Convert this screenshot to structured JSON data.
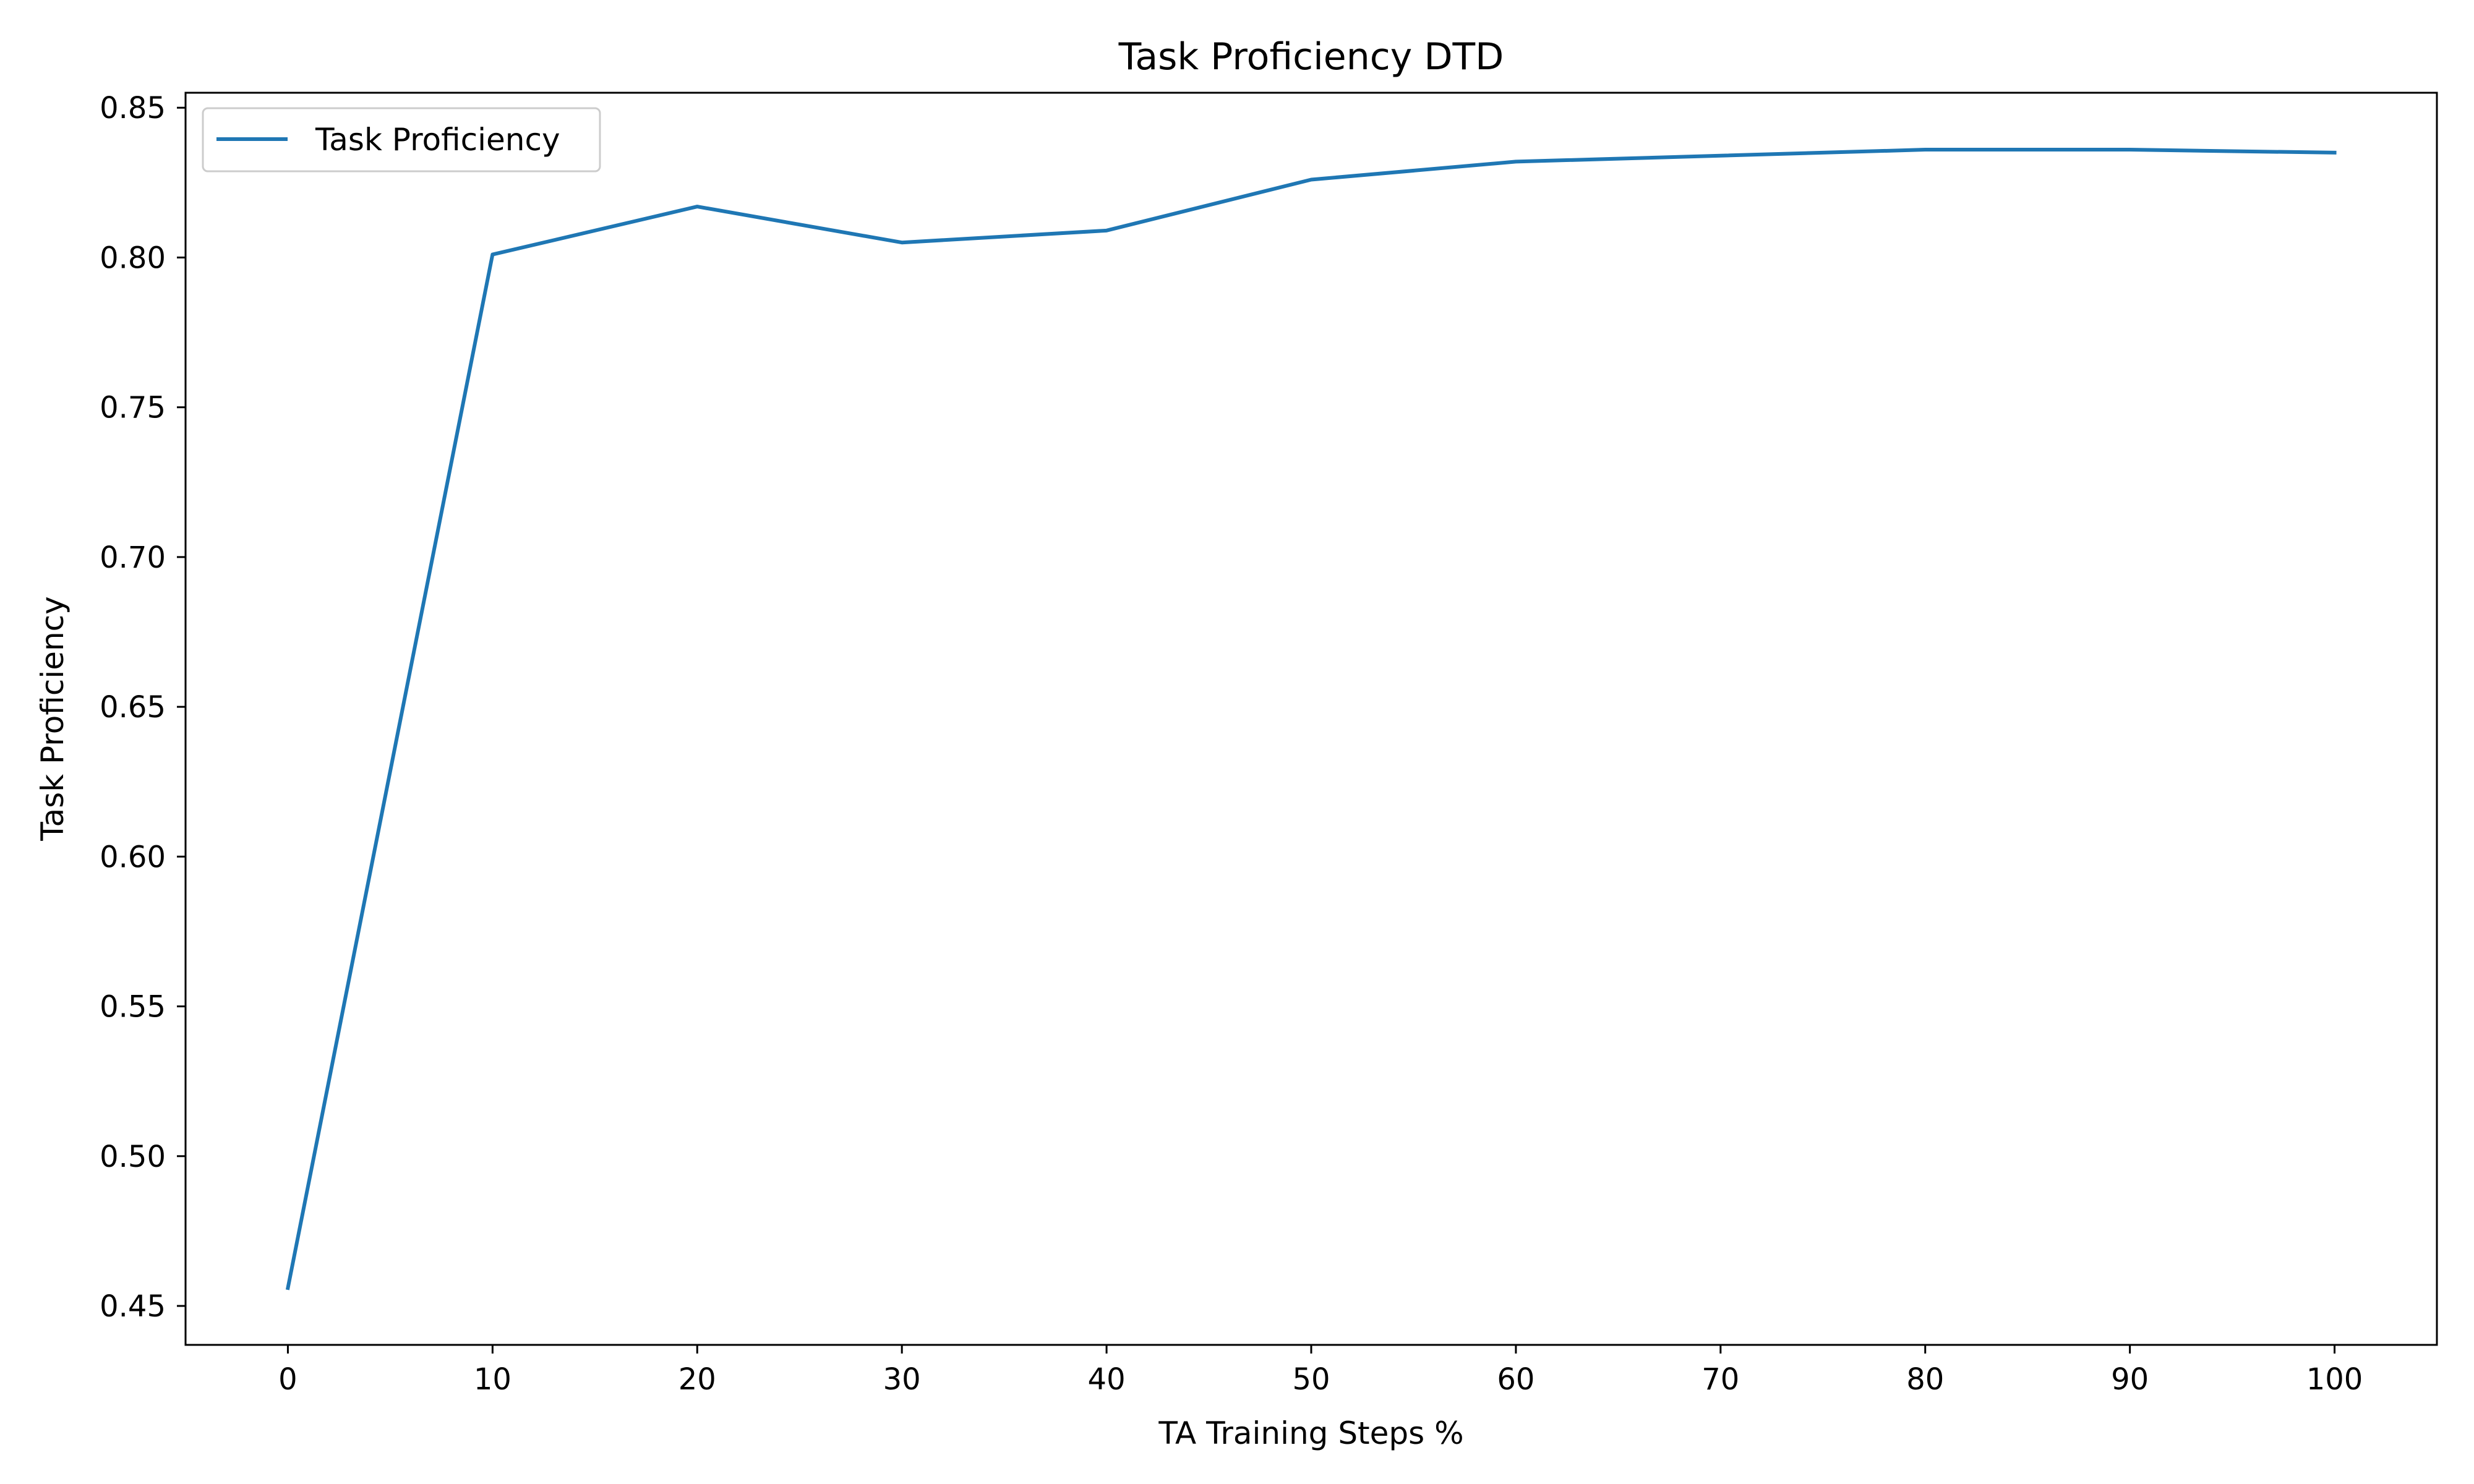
{
  "chart_data": {
    "type": "line",
    "title": "Task Proficiency DTD",
    "xlabel": "TA Training Steps %",
    "ylabel": "Task Proficiency",
    "x": [
      0,
      10,
      20,
      30,
      40,
      50,
      60,
      70,
      80,
      90,
      100
    ],
    "series": [
      {
        "name": "Task Proficiency",
        "color": "#1f77b4",
        "values": [
          0.456,
          0.801,
          0.817,
          0.805,
          0.809,
          0.826,
          0.832,
          0.834,
          0.836,
          0.836,
          0.835
        ]
      }
    ],
    "xlim": [
      -5,
      105
    ],
    "ylim": [
      0.437,
      0.855
    ],
    "xticks": [
      0,
      10,
      20,
      30,
      40,
      50,
      60,
      70,
      80,
      90,
      100
    ],
    "xtick_labels": [
      "0",
      "10",
      "20",
      "30",
      "40",
      "50",
      "60",
      "70",
      "80",
      "90",
      "100"
    ],
    "yticks": [
      0.45,
      0.5,
      0.55,
      0.6,
      0.65,
      0.7,
      0.75,
      0.8,
      0.85
    ],
    "ytick_labels": [
      "0.45",
      "0.50",
      "0.55",
      "0.60",
      "0.65",
      "0.70",
      "0.75",
      "0.80",
      "0.85"
    ],
    "grid": false,
    "legend_position": "top-left"
  }
}
